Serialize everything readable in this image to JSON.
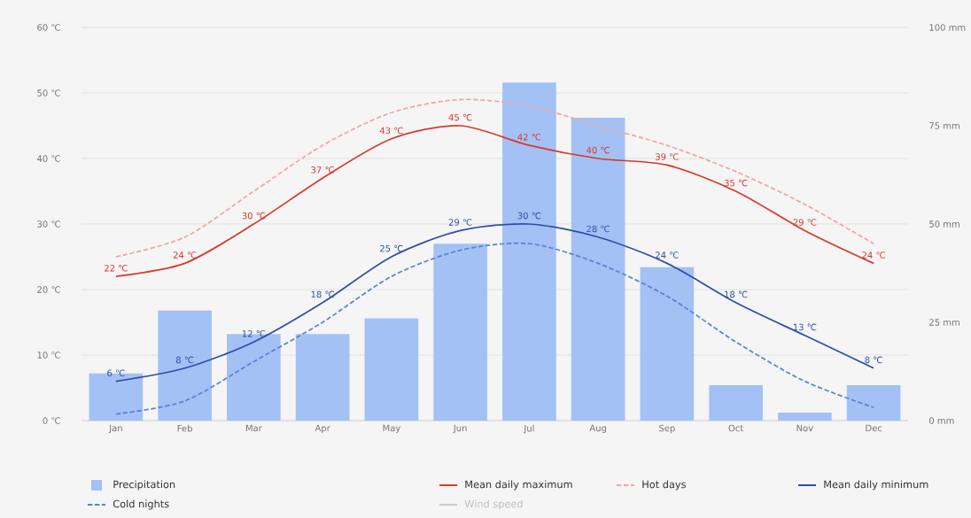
{
  "chart_data": {
    "type": "bar",
    "categories": [
      "Jan",
      "Feb",
      "Mar",
      "Apr",
      "May",
      "Jun",
      "Jul",
      "Aug",
      "Sep",
      "Oct",
      "Nov",
      "Dec"
    ],
    "ylim": [
      0,
      60
    ],
    "yticks": [
      {
        "value": 0,
        "label": "0 ℃"
      },
      {
        "value": 10,
        "label": "10 ℃"
      },
      {
        "value": 20,
        "label": "20 ℃"
      },
      {
        "value": 30,
        "label": "30 ℃"
      },
      {
        "value": 40,
        "label": "40 ℃"
      },
      {
        "value": 50,
        "label": "50 ℃"
      },
      {
        "value": 60,
        "label": "60 ℃"
      }
    ],
    "y2lim": [
      0,
      100
    ],
    "y2ticks": [
      {
        "value": 0,
        "label": "0 mm"
      },
      {
        "value": 25,
        "label": "25 mm"
      },
      {
        "value": 50,
        "label": "50 mm"
      },
      {
        "value": 75,
        "label": "75 mm"
      },
      {
        "value": 100,
        "label": "100 mm"
      }
    ],
    "grid": "y",
    "legend": "bottom",
    "marker": "none",
    "series": [
      {
        "name": "Precipitation",
        "axis": "y2",
        "color": "#a3c1f5",
        "values": [
          12,
          28,
          22,
          22,
          26,
          45,
          86,
          77,
          39,
          9,
          2,
          9
        ]
      },
      {
        "name": "Mean daily maximum",
        "type": "line",
        "line_style": "solid",
        "color": "#d63a2f",
        "values": [
          22,
          24,
          30,
          37,
          43,
          45,
          42,
          40,
          39,
          35,
          29,
          24
        ],
        "value_labels": [
          "22 ℃",
          "24 ℃",
          "30 ℃",
          "37 ℃",
          "43 ℃",
          "45 ℃",
          "42 ℃",
          "40 ℃",
          "39 ℃",
          "35 ℃",
          "29 ℃",
          "24 ℃"
        ]
      },
      {
        "name": "Hot days",
        "type": "line",
        "line_style": "dashed",
        "color": "#eba9a3",
        "values": [
          25,
          28,
          35,
          42,
          47,
          49,
          48,
          45,
          42,
          38,
          33,
          27
        ]
      },
      {
        "name": "Mean daily minimum",
        "type": "line",
        "line_style": "solid",
        "color": "#2f4fa6",
        "values": [
          6,
          8,
          12,
          18,
          25,
          29,
          30,
          28,
          24,
          18,
          13,
          8
        ],
        "value_labels": [
          "6 ℃",
          "8 ℃",
          "12 ℃",
          "18 ℃",
          "25 ℃",
          "29 ℃",
          "30 ℃",
          "28 ℃",
          "24 ℃",
          "18 ℃",
          "13 ℃",
          "8 ℃"
        ]
      },
      {
        "name": "Cold nights",
        "type": "line",
        "line_style": "dashed",
        "color": "#5b82d4",
        "values": [
          1,
          3,
          9,
          15,
          22,
          26,
          27,
          24,
          19,
          12,
          6,
          2
        ]
      },
      {
        "name": "Wind speed",
        "type": "line",
        "line_style": "solid",
        "color": "#cccccc",
        "values": [
          null,
          null,
          null,
          null,
          null,
          null,
          null,
          null,
          null,
          null,
          null,
          null
        ]
      }
    ]
  }
}
